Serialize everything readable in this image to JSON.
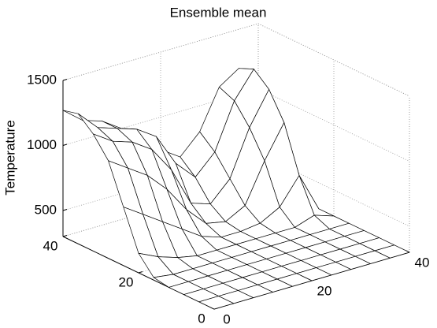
{
  "chart_data": {
    "type": "surface",
    "title": "Ensemble mean",
    "zlabel": "Temperature",
    "x": [
      0,
      4,
      8,
      12,
      16,
      20,
      24,
      28,
      32,
      36,
      40
    ],
    "y": [
      0,
      4,
      8,
      12,
      16,
      20,
      24,
      28,
      32,
      36,
      40
    ],
    "z": [
      [
        300,
        300,
        300,
        300,
        300,
        300,
        300,
        300,
        300,
        300,
        300
      ],
      [
        300,
        300,
        300,
        300,
        300,
        300,
        300,
        300,
        300,
        300,
        300
      ],
      [
        300,
        300,
        300,
        300,
        300,
        300,
        300,
        300,
        300,
        300,
        300
      ],
      [
        300,
        300,
        300,
        300,
        300,
        300,
        300,
        300,
        300,
        300,
        300
      ],
      [
        320,
        300,
        300,
        300,
        300,
        300,
        300,
        300,
        300,
        300,
        300
      ],
      [
        450,
        380,
        330,
        300,
        300,
        300,
        300,
        300,
        300,
        350,
        300
      ],
      [
        750,
        650,
        550,
        450,
        350,
        300,
        300,
        320,
        400,
        600,
        300
      ],
      [
        1050,
        950,
        850,
        700,
        500,
        350,
        320,
        400,
        700,
        950,
        350
      ],
      [
        1200,
        1100,
        1050,
        950,
        750,
        450,
        400,
        550,
        900,
        1150,
        400
      ],
      [
        1300,
        1150,
        1100,
        1050,
        950,
        700,
        550,
        700,
        1050,
        1250,
        450
      ],
      [
        1270,
        1150,
        1100,
        1000,
        900,
        750,
        650,
        800,
        1100,
        1200,
        450
      ]
    ],
    "xlim": [
      0,
      40
    ],
    "ylim": [
      0,
      40
    ],
    "zlim": [
      300,
      1500
    ],
    "xticks": [
      0,
      20,
      40
    ],
    "yticks": [
      0,
      20,
      40
    ],
    "zticks": [
      500,
      1000,
      1500
    ],
    "grid": true,
    "color": "#ffffff",
    "edge_color": "#000000"
  }
}
